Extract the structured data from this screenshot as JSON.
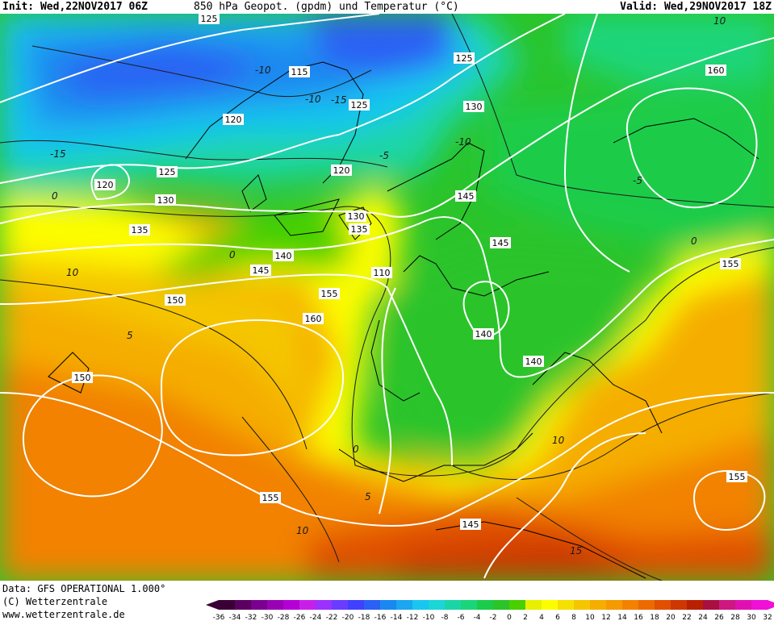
{
  "header": {
    "init": "Init: Wed,22NOV2017 06Z",
    "title": "850 hPa Geopot. (gpdm) und Temperatur (°C)",
    "valid": "Valid: Wed,29NOV2017 18Z"
  },
  "footer": {
    "source": "Data: GFS OPERATIONAL 1.000°",
    "copyright": "(C) Wetterzentrale",
    "url": "www.wetterzentrale.de"
  },
  "map": {
    "geopotential_labels": [
      "125",
      "115",
      "125",
      "130",
      "120",
      "125",
      "120",
      "130",
      "120",
      "125",
      "130",
      "135",
      "135",
      "140",
      "145",
      "150",
      "155",
      "160",
      "110",
      "145",
      "145",
      "140",
      "140",
      "150",
      "155",
      "160",
      "155",
      "145",
      "10"
    ],
    "temperature_labels": [
      "-10",
      "-15",
      "-10",
      "-15",
      "-5",
      "0",
      "-5",
      "-10",
      "-5",
      "0",
      "10",
      "5",
      "0",
      "5",
      "10",
      "15",
      "0",
      "10",
      "-10",
      "-5"
    ]
  },
  "legend": {
    "ticks": [
      "-36",
      "-34",
      "-32",
      "-30",
      "-28",
      "-26",
      "-24",
      "-22",
      "-20",
      "-18",
      "-16",
      "-14",
      "-12",
      "-10",
      "-8",
      "-6",
      "-4",
      "-2",
      "0",
      "2",
      "4",
      "6",
      "8",
      "10",
      "12",
      "14",
      "16",
      "18",
      "20",
      "22",
      "24",
      "26",
      "28",
      "30",
      "32"
    ],
    "colors": [
      "#3a0036",
      "#5a0060",
      "#7a0090",
      "#9a00b4",
      "#b400d4",
      "#c71fe8",
      "#9b30ff",
      "#6a3cff",
      "#4040ff",
      "#2a60f4",
      "#1a88f0",
      "#1aa6f0",
      "#19c6f0",
      "#1ad6d6",
      "#1ad6a6",
      "#1ad67a",
      "#1acc4a",
      "#2bc42b",
      "#48d000",
      "#e8f000",
      "#fdfd00",
      "#f4e100",
      "#f5c600",
      "#f5ad00",
      "#f59a00",
      "#f28200",
      "#ec6a00",
      "#e05000",
      "#cc3800",
      "#b82000",
      "#a81040",
      "#cc1880",
      "#e010b0",
      "#f010d8"
    ]
  },
  "colors": {
    "cold_deep": "#2a5ad8",
    "cold": "#1aa6f0",
    "cool": "#1ad6a6",
    "mild": "#2bc42b",
    "zero": "#f8f200",
    "warm": "#f5ad00",
    "hot": "#e05000",
    "isohypse": "#ffffff",
    "isotherm": "#1a1a1a"
  }
}
